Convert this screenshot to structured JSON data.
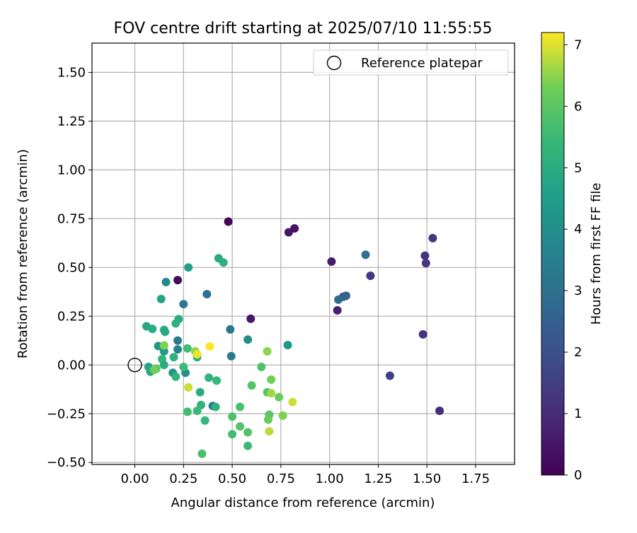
{
  "chart_data": {
    "type": "scatter",
    "title": "FOV centre drift starting at 2025/07/10 11:55:55",
    "xlabel": "Angular distance from reference (arcmin)",
    "ylabel": "Rotation from reference (arcmin)",
    "xlim": [
      -0.22,
      1.95
    ],
    "ylim": [
      -0.51,
      1.65
    ],
    "xticks": [
      0.0,
      0.25,
      0.5,
      0.75,
      1.0,
      1.25,
      1.5,
      1.75
    ],
    "xtick_labels": [
      "0.00",
      "0.25",
      "0.50",
      "0.75",
      "1.00",
      "1.25",
      "1.50",
      "1.75"
    ],
    "yticks": [
      -0.5,
      -0.25,
      0.0,
      0.25,
      0.5,
      0.75,
      1.0,
      1.25,
      1.5
    ],
    "ytick_labels": [
      "−0.50",
      "−0.25",
      "0.00",
      "0.25",
      "0.50",
      "0.75",
      "1.00",
      "1.25",
      "1.50"
    ],
    "grid": true,
    "legend_position": "top-right",
    "reference": {
      "label": "Reference platepar",
      "x": 0.0,
      "y": 0.0
    },
    "colorbar": {
      "label": "Hours from first FF file",
      "min": 0,
      "max": 7.2,
      "ticks": [
        0,
        1,
        2,
        3,
        4,
        5,
        6,
        7
      ],
      "tick_labels": [
        "0",
        "1",
        "2",
        "3",
        "4",
        "5",
        "6",
        "7"
      ],
      "colormap": "viridis"
    },
    "points": [
      {
        "x": 0.48,
        "y": 0.735,
        "h": 0.1
      },
      {
        "x": 0.79,
        "y": 0.68,
        "h": 0.5
      },
      {
        "x": 0.82,
        "y": 0.7,
        "h": 0.4
      },
      {
        "x": 1.01,
        "y": 0.53,
        "h": 0.6
      },
      {
        "x": 1.04,
        "y": 0.28,
        "h": 0.7
      },
      {
        "x": 0.22,
        "y": 0.435,
        "h": 0.2
      },
      {
        "x": 0.595,
        "y": 0.237,
        "h": 0.5
      },
      {
        "x": 1.53,
        "y": 0.65,
        "h": 1.3
      },
      {
        "x": 1.49,
        "y": 0.56,
        "h": 1.2
      },
      {
        "x": 1.495,
        "y": 0.522,
        "h": 1.3
      },
      {
        "x": 1.21,
        "y": 0.457,
        "h": 1.4
      },
      {
        "x": 1.48,
        "y": 0.157,
        "h": 1.2
      },
      {
        "x": 1.31,
        "y": -0.055,
        "h": 1.6
      },
      {
        "x": 1.565,
        "y": -0.235,
        "h": 1.1
      },
      {
        "x": 1.07,
        "y": 0.35,
        "h": 2.1
      },
      {
        "x": 1.085,
        "y": 0.355,
        "h": 2.6
      },
      {
        "x": 1.045,
        "y": 0.335,
        "h": 2.8
      },
      {
        "x": 1.185,
        "y": 0.565,
        "h": 3.0
      },
      {
        "x": 0.25,
        "y": 0.312,
        "h": 3.3
      },
      {
        "x": 0.37,
        "y": 0.363,
        "h": 3.0
      },
      {
        "x": 0.49,
        "y": 0.182,
        "h": 3.2
      },
      {
        "x": 0.495,
        "y": 0.045,
        "h": 3.3
      },
      {
        "x": 0.22,
        "y": 0.125,
        "h": 3.4
      },
      {
        "x": 0.22,
        "y": 0.08,
        "h": 3.6
      },
      {
        "x": 0.4,
        "y": -0.21,
        "h": 3.3
      },
      {
        "x": 0.16,
        "y": 0.425,
        "h": 3.9
      },
      {
        "x": 0.58,
        "y": 0.13,
        "h": 4.0
      },
      {
        "x": 0.785,
        "y": 0.102,
        "h": 4.2
      },
      {
        "x": 0.195,
        "y": -0.04,
        "h": 4.1
      },
      {
        "x": 0.26,
        "y": -0.04,
        "h": 4.0
      },
      {
        "x": 0.12,
        "y": 0.097,
        "h": 4.3
      },
      {
        "x": 0.15,
        "y": 0.07,
        "h": 4.4
      },
      {
        "x": 0.275,
        "y": 0.5,
        "h": 4.6
      },
      {
        "x": 0.135,
        "y": 0.338,
        "h": 4.7
      },
      {
        "x": 0.43,
        "y": 0.547,
        "h": 5.0
      },
      {
        "x": 0.455,
        "y": 0.525,
        "h": 5.1
      },
      {
        "x": 0.225,
        "y": 0.235,
        "h": 5.0
      },
      {
        "x": 0.21,
        "y": 0.213,
        "h": 5.2
      },
      {
        "x": 0.06,
        "y": 0.198,
        "h": 4.8
      },
      {
        "x": 0.09,
        "y": 0.185,
        "h": 5.0
      },
      {
        "x": 0.15,
        "y": 0.18,
        "h": 5.1
      },
      {
        "x": 0.155,
        "y": 0.17,
        "h": 4.9
      },
      {
        "x": 0.07,
        "y": -0.01,
        "h": 4.8
      },
      {
        "x": 0.08,
        "y": -0.035,
        "h": 5.0
      },
      {
        "x": 0.14,
        "y": 0.03,
        "h": 5.3
      },
      {
        "x": 0.2,
        "y": 0.04,
        "h": 5.2
      },
      {
        "x": 0.15,
        "y": 0.0,
        "h": 5.0
      },
      {
        "x": 0.21,
        "y": -0.06,
        "h": 5.3
      },
      {
        "x": 0.25,
        "y": -0.01,
        "h": 5.5
      },
      {
        "x": 0.27,
        "y": 0.085,
        "h": 5.6
      },
      {
        "x": 0.32,
        "y": 0.04,
        "h": 5.1
      },
      {
        "x": 0.335,
        "y": -0.14,
        "h": 5.0
      },
      {
        "x": 0.34,
        "y": -0.205,
        "h": 5.2
      },
      {
        "x": 0.38,
        "y": -0.065,
        "h": 5.3
      },
      {
        "x": 0.42,
        "y": -0.08,
        "h": 5.4
      },
      {
        "x": 0.415,
        "y": -0.215,
        "h": 5.2
      },
      {
        "x": 0.36,
        "y": -0.285,
        "h": 5.4
      },
      {
        "x": 0.32,
        "y": -0.235,
        "h": 5.5
      },
      {
        "x": 0.27,
        "y": -0.24,
        "h": 5.6
      },
      {
        "x": 0.345,
        "y": -0.455,
        "h": 5.7
      },
      {
        "x": 0.5,
        "y": -0.265,
        "h": 5.8
      },
      {
        "x": 0.5,
        "y": -0.355,
        "h": 5.6
      },
      {
        "x": 0.54,
        "y": -0.315,
        "h": 5.9
      },
      {
        "x": 0.58,
        "y": -0.415,
        "h": 5.5
      },
      {
        "x": 0.58,
        "y": -0.345,
        "h": 5.9
      },
      {
        "x": 0.54,
        "y": -0.215,
        "h": 5.7
      },
      {
        "x": 0.6,
        "y": -0.105,
        "h": 5.9
      },
      {
        "x": 0.65,
        "y": -0.01,
        "h": 5.8
      },
      {
        "x": 0.68,
        "y": -0.14,
        "h": 5.9
      },
      {
        "x": 0.69,
        "y": -0.255,
        "h": 6.0
      },
      {
        "x": 0.685,
        "y": -0.28,
        "h": 6.2
      },
      {
        "x": 0.7,
        "y": -0.075,
        "h": 6.3
      },
      {
        "x": 0.7,
        "y": -0.145,
        "h": 6.6
      },
      {
        "x": 0.74,
        "y": -0.165,
        "h": 6.2
      },
      {
        "x": 0.76,
        "y": -0.26,
        "h": 6.4
      },
      {
        "x": 0.69,
        "y": -0.34,
        "h": 6.8
      },
      {
        "x": 0.68,
        "y": 0.07,
        "h": 6.5
      },
      {
        "x": 0.81,
        "y": -0.19,
        "h": 6.9
      },
      {
        "x": 0.11,
        "y": -0.02,
        "h": 6.0
      },
      {
        "x": 0.1,
        "y": -0.025,
        "h": 6.3
      },
      {
        "x": 0.15,
        "y": 0.1,
        "h": 6.4
      },
      {
        "x": 0.31,
        "y": 0.07,
        "h": 6.5
      },
      {
        "x": 0.32,
        "y": 0.055,
        "h": 7.1
      },
      {
        "x": 0.385,
        "y": 0.095,
        "h": 7.2
      },
      {
        "x": 0.275,
        "y": -0.115,
        "h": 6.9
      }
    ]
  }
}
